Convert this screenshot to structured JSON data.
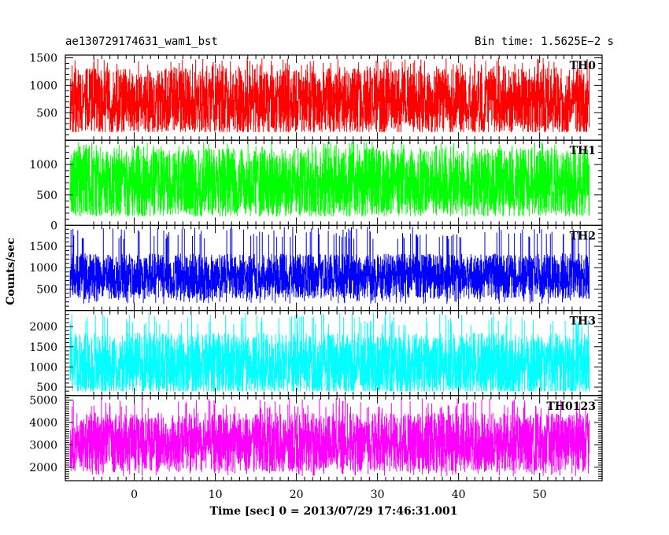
{
  "header": {
    "title_left": "ae130729174631_wam1_bst",
    "title_right": "Bin time: 1.5625E−2 s"
  },
  "chart_data": {
    "type": "line",
    "layout": "stacked-panels",
    "xlabel": "Time [sec] 0 = 2013/07/29 17:46:31.001",
    "ylabel": "Counts/sec",
    "xlim": [
      -8.5,
      57.7
    ],
    "x_range_data": [
      -7.9,
      56.1
    ],
    "x_ticks": [
      0,
      10,
      20,
      30,
      40,
      50
    ],
    "grid": false,
    "panels": [
      {
        "name": "TH0",
        "color": "#ff0000",
        "ylim": [
          0,
          1550
        ],
        "y_ticks": [
          500,
          1000,
          1500
        ],
        "baseline": 700,
        "spread": 320,
        "low": 150,
        "high": 1500,
        "seed": 11
      },
      {
        "name": "TH1",
        "color": "#00ff00",
        "ylim": [
          0,
          1400
        ],
        "y_ticks": [
          0,
          500,
          1000
        ],
        "baseline": 700,
        "spread": 300,
        "low": 150,
        "high": 1380,
        "seed": 23
      },
      {
        "name": "TH2",
        "color": "#0000ff",
        "ylim": [
          0,
          1990
        ],
        "y_ticks": [
          500,
          1000,
          1500,
          2000
        ],
        "baseline": 800,
        "spread": 280,
        "low": 150,
        "high": 1960,
        "seed": 37
      },
      {
        "name": "TH3",
        "color": "#00ffff",
        "ylim": [
          290,
          2400
        ],
        "y_ticks": [
          500,
          1000,
          1500,
          2000
        ],
        "baseline": 1050,
        "spread": 420,
        "low": 400,
        "high": 2350,
        "seed": 41
      },
      {
        "name": "TH0123",
        "color": "#ff00ff",
        "ylim": [
          1400,
          5200
        ],
        "y_ticks": [
          2000,
          3000,
          4000,
          5000
        ],
        "baseline": 3100,
        "spread": 700,
        "low": 1600,
        "high": 5100,
        "seed": 53
      }
    ]
  }
}
